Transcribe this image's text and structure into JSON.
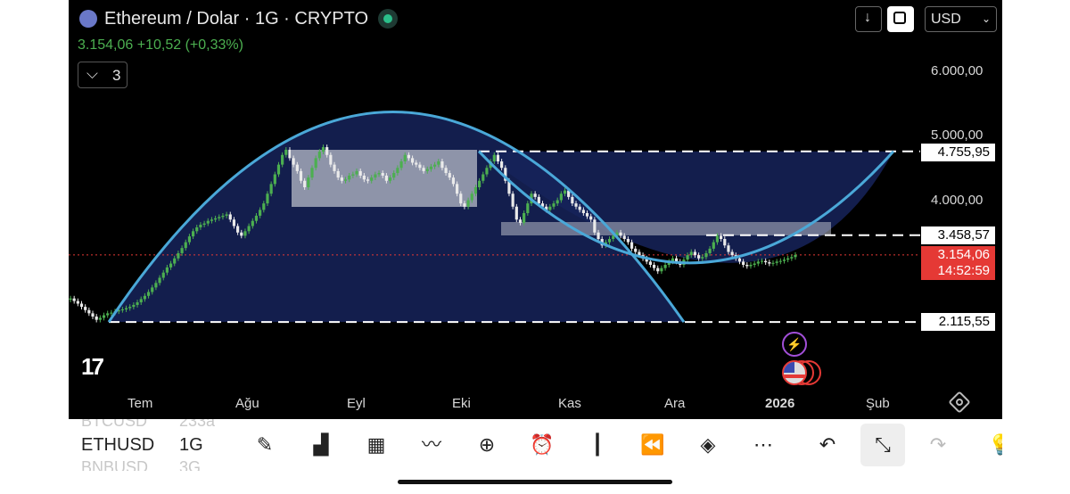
{
  "header": {
    "title": "Ethereum / Dolar · 1G · CRYPTO",
    "last_price": "3.154,06",
    "change": "+10,52",
    "change_pct": "(+0,33%)",
    "indicator_count": "3",
    "currency": "USD",
    "colors": {
      "up": "#4caf50",
      "down": "#e53935",
      "accent": "#4aa8d8"
    }
  },
  "price_tags": {
    "resistance": "4.755,95",
    "mid": "3.458,57",
    "current": "3.154,06",
    "countdown": "14:52:59",
    "support": "2.115,55"
  },
  "chart_data": {
    "type": "candlestick",
    "title": "Ethereum / Dolar · 1G · CRYPTO",
    "x_ticks": [
      "Tem",
      "Ağu",
      "Eyl",
      "Eki",
      "Kas",
      "Ara",
      "2026",
      "Şub"
    ],
    "y_ticks": [
      "6.000,00",
      "5.000,00",
      "4.000,00"
    ],
    "ylim": [
      1900,
      6300
    ],
    "close_series": [
      2480,
      2440,
      2400,
      2350,
      2300,
      2250,
      2200,
      2150,
      2180,
      2220,
      2250,
      2260,
      2280,
      2300,
      2310,
      2330,
      2350,
      2380,
      2420,
      2470,
      2520,
      2580,
      2650,
      2720,
      2800,
      2880,
      2960,
      3020,
      3100,
      3180,
      3260,
      3350,
      3440,
      3520,
      3580,
      3620,
      3640,
      3680,
      3700,
      3720,
      3740,
      3760,
      3780,
      3700,
      3600,
      3500,
      3450,
      3520,
      3600,
      3680,
      3760,
      3850,
      3950,
      4100,
      4250,
      4400,
      4550,
      4700,
      4780,
      4650,
      4550,
      4450,
      4300,
      4200,
      4350,
      4500,
      4650,
      4750,
      4820,
      4700,
      4550,
      4450,
      4350,
      4300,
      4320,
      4380,
      4400,
      4450,
      4380,
      4320,
      4300,
      4350,
      4400,
      4420,
      4380,
      4300,
      4350,
      4420,
      4500,
      4600,
      4700,
      4650,
      4580,
      4550,
      4500,
      4450,
      4480,
      4520,
      4550,
      4600,
      4500,
      4420,
      4350,
      4250,
      4100,
      3950,
      3900,
      4000,
      4100,
      4200,
      4300,
      4400,
      4500,
      4600,
      4700,
      4600,
      4500,
      4300,
      4100,
      3900,
      3700,
      3650,
      3800,
      3950,
      4100,
      4050,
      3950,
      3900,
      3850,
      3900,
      3950,
      4000,
      4100,
      4150,
      4050,
      3950,
      3900,
      3850,
      3800,
      3750,
      3700,
      3500,
      3400,
      3300,
      3350,
      3400,
      3450,
      3500,
      3450,
      3400,
      3350,
      3250,
      3200,
      3150,
      3100,
      3050,
      3000,
      2950,
      2900,
      2950,
      3000,
      3050,
      3100,
      3050,
      3000,
      3080,
      3150,
      3200,
      3150,
      3100,
      3120,
      3180,
      3250,
      3350,
      3450,
      3400,
      3300,
      3200,
      3150,
      3100,
      3050,
      3000,
      2980,
      3000,
      3020,
      3050,
      3060,
      3040,
      3020,
      3030,
      3050,
      3060,
      3080,
      3100,
      3120,
      3154
    ]
  },
  "chart_overlays": {
    "resistance_level": 4755.95,
    "mid_level": 3458.57,
    "support_level": 2115.55,
    "current_level": 3154.06
  },
  "bottom_bar": {
    "ghost_top": "BTCUSD",
    "ghost_top_tf": "233a",
    "symbol": "ETHUSD",
    "timeframe": "1G",
    "ghost_bottom": "BNBUSD",
    "ghost_bottom_tf": "3G",
    "tools": [
      "pencil-icon",
      "chart-icon",
      "grid-icon",
      "indicator-icon",
      "plus-icon",
      "alarm-icon",
      "candles-icon",
      "replay-icon",
      "layers-icon",
      "more-icon",
      "undo-icon",
      "fullscreen-exit-icon",
      "redo-icon",
      "idea-icon"
    ]
  },
  "logo": "TradingView"
}
